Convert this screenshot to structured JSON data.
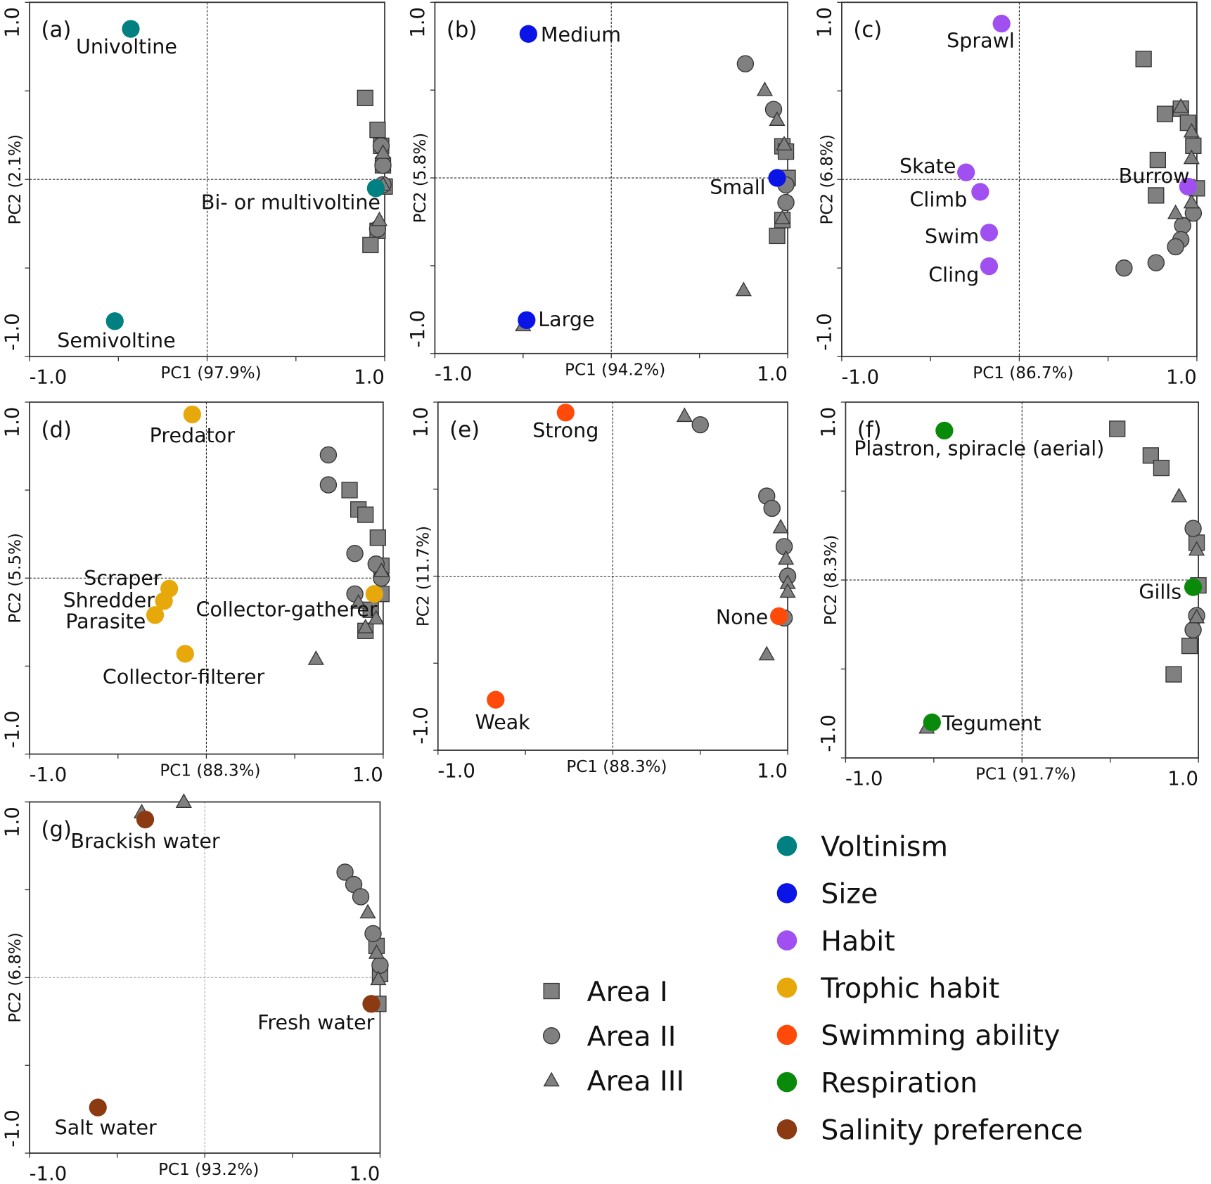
{
  "chart_data": [
    {
      "type": "scatter",
      "panel_label": "(a)",
      "xlabel": "PC1 (97.9%)",
      "ylabel": "PC2 (2.1%)",
      "xlim": [
        -1,
        1
      ],
      "ylim": [
        -1,
        1
      ],
      "x_ticks": [
        "-1.0",
        "1.0"
      ],
      "y_ticks": [
        "-1.0",
        "1.0"
      ],
      "reference_lines": "dashed at 0",
      "trait": {
        "name": "Voltinism",
        "color": "#008080",
        "points": [
          {
            "label": "Univoltine",
            "x": -0.43,
            "y": 0.85
          },
          {
            "label": "Semivoltine",
            "x": -0.52,
            "y": -0.8
          },
          {
            "label": "Bi- or multivoltine",
            "x": 0.95,
            "y": -0.05
          }
        ]
      },
      "sites": {
        "Area I": [
          [
            0.89,
            0.46
          ],
          [
            0.96,
            0.28
          ],
          [
            0.98,
            0.19
          ],
          [
            0.99,
            0.08
          ],
          [
            1.0,
            -0.04
          ],
          [
            0.96,
            -0.29
          ],
          [
            0.92,
            -0.37
          ]
        ],
        "Area II": [
          [
            0.98,
            0.19
          ],
          [
            0.99,
            0.08
          ],
          [
            0.96,
            -0.28
          ],
          [
            0.99,
            -0.03
          ]
        ],
        "Area III": [
          [
            0.99,
            0.15
          ],
          [
            0.97,
            -0.23
          ],
          [
            0.99,
            -0.03
          ]
        ]
      }
    },
    {
      "type": "scatter",
      "panel_label": "(b)",
      "xlabel": "PC1 (94.2%)",
      "ylabel": "PC2 (5.8%)",
      "xlim": [
        -1,
        1
      ],
      "ylim": [
        -1,
        1
      ],
      "x_ticks": [
        "-1.0",
        "1.0"
      ],
      "y_ticks": [
        "-1.0",
        "1.0"
      ],
      "reference_lines": "dashed at 0",
      "trait": {
        "name": "Size",
        "color": "#0a14e6",
        "points": [
          {
            "label": "Medium",
            "x": -0.47,
            "y": 0.82
          },
          {
            "label": "Large",
            "x": -0.48,
            "y": -0.81
          },
          {
            "label": "Small",
            "x": 0.94,
            "y": 0.0
          }
        ]
      },
      "sites": {
        "Area I": [
          [
            0.97,
            0.18
          ],
          [
            0.99,
            0.15
          ],
          [
            1.0,
            0.0
          ],
          [
            0.97,
            -0.24
          ],
          [
            0.94,
            -0.33
          ]
        ],
        "Area II": [
          [
            0.76,
            0.65
          ],
          [
            0.92,
            0.39
          ],
          [
            0.99,
            -0.04
          ],
          [
            0.99,
            -0.14
          ]
        ],
        "Area III": [
          [
            0.87,
            0.5
          ],
          [
            0.94,
            0.33
          ],
          [
            0.98,
            0.19
          ],
          [
            0.97,
            -0.23
          ],
          [
            0.75,
            -0.64
          ],
          [
            -0.5,
            -0.84
          ]
        ]
      }
    },
    {
      "type": "scatter",
      "panel_label": "(c)",
      "xlabel": "PC1 (86.7%)",
      "ylabel": "PC2 (6.8%)",
      "xlim": [
        -1,
        1
      ],
      "ylim": [
        -1,
        1
      ],
      "x_ticks": [
        "-1.0",
        "1.0"
      ],
      "y_ticks": [
        "-1.0",
        "1.0"
      ],
      "reference_lines": "dashed at 0",
      "trait": {
        "name": "Habit",
        "color": "#a050f0",
        "points": [
          {
            "label": "Sprawl",
            "x": -0.1,
            "y": 0.88
          },
          {
            "label": "Skate",
            "x": -0.3,
            "y": 0.04
          },
          {
            "label": "Climb",
            "x": -0.22,
            "y": -0.07
          },
          {
            "label": "Swim",
            "x": -0.17,
            "y": -0.3
          },
          {
            "label": "Cling",
            "x": -0.17,
            "y": -0.49
          },
          {
            "label": "Burrow",
            "x": 0.95,
            "y": -0.04
          }
        ]
      },
      "sites": {
        "Area I": [
          [
            0.7,
            0.68
          ],
          [
            0.82,
            0.37
          ],
          [
            0.91,
            0.4
          ],
          [
            0.95,
            0.32
          ],
          [
            0.98,
            0.19
          ],
          [
            0.78,
            0.11
          ],
          [
            0.77,
            -0.09
          ],
          [
            1.0,
            -0.05
          ]
        ],
        "Area II": [
          [
            0.98,
            -0.19
          ],
          [
            0.92,
            -0.26
          ],
          [
            0.91,
            -0.34
          ],
          [
            0.88,
            -0.38
          ],
          [
            0.77,
            -0.47
          ],
          [
            0.59,
            -0.5
          ]
        ],
        "Area III": [
          [
            0.91,
            0.41
          ],
          [
            0.97,
            0.27
          ],
          [
            0.97,
            0.12
          ],
          [
            0.88,
            -0.19
          ],
          [
            0.97,
            -0.13
          ]
        ]
      }
    },
    {
      "type": "scatter",
      "panel_label": "(d)",
      "xlabel": "PC1 (88.3%)",
      "ylabel": "PC2 (5.5%)",
      "xlim": [
        -1,
        1
      ],
      "ylim": [
        -1,
        1
      ],
      "x_ticks": [
        "-1.0",
        "1.0"
      ],
      "y_ticks": [
        "-1.0",
        "1.0"
      ],
      "reference_lines": "dashed at 0",
      "trait": {
        "name": "Trophic habit",
        "color": "#e6a80a",
        "points": [
          {
            "label": "Predator",
            "x": -0.08,
            "y": 0.93
          },
          {
            "label": "Scraper",
            "x": -0.21,
            "y": -0.06
          },
          {
            "label": "Shredder",
            "x": -0.24,
            "y": -0.13
          },
          {
            "label": "Parasite",
            "x": -0.29,
            "y": -0.21
          },
          {
            "label": "Collector-gatherer",
            "x": 0.95,
            "y": -0.09
          },
          {
            "label": "Collector-filterer",
            "x": -0.12,
            "y": -0.43
          }
        ]
      },
      "sites": {
        "Area I": [
          [
            0.81,
            0.5
          ],
          [
            0.86,
            0.39
          ],
          [
            0.9,
            0.36
          ],
          [
            0.97,
            0.23
          ],
          [
            0.99,
            0.07
          ],
          [
            0.99,
            -0.09
          ],
          [
            0.93,
            -0.18
          ],
          [
            0.9,
            -0.3
          ]
        ],
        "Area II": [
          [
            0.69,
            0.7
          ],
          [
            0.69,
            0.53
          ],
          [
            0.84,
            0.14
          ],
          [
            0.96,
            0.08
          ],
          [
            0.99,
            0.0
          ],
          [
            0.84,
            -0.09
          ]
        ],
        "Area III": [
          [
            0.99,
            0.04
          ],
          [
            0.86,
            -0.14
          ],
          [
            0.96,
            -0.23
          ],
          [
            0.9,
            -0.28
          ],
          [
            0.62,
            -0.46
          ]
        ]
      }
    },
    {
      "type": "scatter",
      "panel_label": "(e)",
      "xlabel": "PC1 (88.3%)",
      "ylabel": "PC2 (11.7%)",
      "xlim": [
        -1,
        1
      ],
      "ylim": [
        -1,
        1
      ],
      "x_ticks": [
        "-1.0",
        "1.0"
      ],
      "y_ticks": [
        "-1.0",
        "1.0"
      ],
      "reference_lines": "dashed at 0",
      "trait": {
        "name": "Swimming ability",
        "color": "#ff4a0a",
        "points": [
          {
            "label": "Strong",
            "x": -0.27,
            "y": 0.94
          },
          {
            "label": "Weak",
            "x": -0.67,
            "y": -0.71
          },
          {
            "label": "None",
            "x": 0.95,
            "y": -0.23
          }
        ]
      },
      "sites": {
        "Area I": [],
        "Area II": [
          [
            0.5,
            0.87
          ],
          [
            0.88,
            0.46
          ],
          [
            0.91,
            0.39
          ],
          [
            0.98,
            0.17
          ],
          [
            1.0,
            0.0
          ],
          [
            0.98,
            -0.24
          ]
        ],
        "Area III": [
          [
            0.41,
            0.92
          ],
          [
            0.96,
            0.28
          ],
          [
            0.99,
            0.1
          ],
          [
            1.0,
            -0.04
          ],
          [
            1.0,
            -0.09
          ],
          [
            0.88,
            -0.45
          ]
        ]
      }
    },
    {
      "type": "scatter",
      "panel_label": "(f)",
      "xlabel": "PC1 (91.7%)",
      "ylabel": "PC2 (8.3%)",
      "xlim": [
        -1,
        1
      ],
      "ylim": [
        -1,
        1
      ],
      "x_ticks": [
        "-1.0",
        "1.0"
      ],
      "y_ticks": [
        "-1.0",
        "1.0"
      ],
      "reference_lines": "dashed at 0",
      "trait": {
        "name": "Respiration",
        "color": "#0a8a0a",
        "points": [
          {
            "label": "Plastron, spiracle (aerial)",
            "x": -0.44,
            "y": 0.84
          },
          {
            "label": "Gills",
            "x": 0.97,
            "y": -0.04
          },
          {
            "label": "Tegument",
            "x": -0.51,
            "y": -0.8
          }
        ]
      },
      "sites": {
        "Area I": [
          [
            0.54,
            0.85
          ],
          [
            0.73,
            0.7
          ],
          [
            0.79,
            0.63
          ],
          [
            0.99,
            0.21
          ],
          [
            1.0,
            -0.03
          ],
          [
            0.95,
            -0.37
          ],
          [
            0.86,
            -0.53
          ]
        ],
        "Area II": [
          [
            0.97,
            0.29
          ],
          [
            0.99,
            -0.2
          ],
          [
            0.97,
            -0.28
          ]
        ],
        "Area III": [
          [
            0.89,
            0.47
          ],
          [
            0.99,
            0.17
          ],
          [
            0.99,
            -0.21
          ],
          [
            -0.54,
            -0.83
          ]
        ]
      }
    },
    {
      "type": "scatter",
      "panel_label": "(g)",
      "xlabel": "PC1 (93.2%)",
      "ylabel": "PC2 (6.8%)",
      "xlim": [
        -1,
        1
      ],
      "ylim": [
        -1,
        1
      ],
      "x_ticks": [
        "-1.0",
        "1.0"
      ],
      "y_ticks": [
        "-1.0",
        "1.0"
      ],
      "reference_lines": "dashed at 0 (light gray)",
      "trait": {
        "name": "Salinity preference",
        "color": "#8b3a12",
        "points": [
          {
            "label": "Brackish water",
            "x": -0.34,
            "y": 0.9
          },
          {
            "label": "Fresh water",
            "x": 0.95,
            "y": -0.15
          },
          {
            "label": "Salt water",
            "x": -0.61,
            "y": -0.74
          }
        ]
      },
      "sites": {
        "Area I": [
          [
            0.98,
            0.18
          ],
          [
            1.0,
            0.02
          ],
          [
            0.99,
            -0.15
          ]
        ],
        "Area II": [
          [
            0.8,
            0.6
          ],
          [
            0.85,
            0.53
          ],
          [
            0.89,
            0.46
          ],
          [
            0.96,
            0.25
          ],
          [
            1.0,
            0.07
          ]
        ],
        "Area III": [
          [
            -0.36,
            0.94
          ],
          [
            -0.12,
            1.0
          ],
          [
            0.93,
            0.37
          ],
          [
            0.98,
            0.14
          ],
          [
            0.99,
            -0.01
          ]
        ]
      }
    }
  ],
  "legend": {
    "sites": [
      {
        "label": "Area I",
        "marker": "square"
      },
      {
        "label": "Area II",
        "marker": "circle"
      },
      {
        "label": "Area III",
        "marker": "triangle"
      }
    ],
    "traits": [
      {
        "label": "Voltinism",
        "color": "#008080"
      },
      {
        "label": "Size",
        "color": "#0a14e6"
      },
      {
        "label": "Habit",
        "color": "#a050f0"
      },
      {
        "label": "Trophic habit",
        "color": "#e6a80a"
      },
      {
        "label": "Swimming ability",
        "color": "#ff4a0a"
      },
      {
        "label": "Respiration",
        "color": "#0a8a0a"
      },
      {
        "label": "Salinity preference",
        "color": "#8b3a12"
      }
    ],
    "site_color": "#808080"
  }
}
